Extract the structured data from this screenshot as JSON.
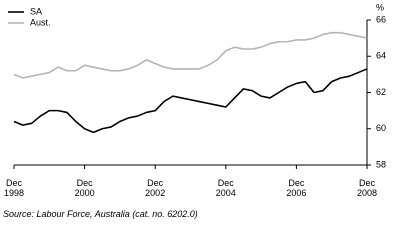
{
  "chart_data": {
    "type": "line",
    "y_label": "%",
    "source": "Source: Labour Force, Australia (cat. no. 6202.0)",
    "x": [
      "1998-12",
      "1999-03",
      "1999-06",
      "1999-09",
      "1999-12",
      "2000-03",
      "2000-06",
      "2000-09",
      "2000-12",
      "2001-03",
      "2001-06",
      "2001-09",
      "2001-12",
      "2002-03",
      "2002-06",
      "2002-09",
      "2002-12",
      "2003-03",
      "2003-06",
      "2003-09",
      "2003-12",
      "2004-03",
      "2004-06",
      "2004-09",
      "2004-12",
      "2005-03",
      "2005-06",
      "2005-09",
      "2005-12",
      "2006-03",
      "2006-06",
      "2006-09",
      "2006-12",
      "2007-03",
      "2007-06",
      "2007-09",
      "2007-12",
      "2008-03",
      "2008-06",
      "2008-09",
      "2008-12"
    ],
    "xlim": [
      "1998-12",
      "2008-12"
    ],
    "xticks": [
      {
        "value": "1998-12",
        "label": "Dec 1998"
      },
      {
        "value": "2000-12",
        "label": "Dec 2000"
      },
      {
        "value": "2002-12",
        "label": "Dec 2002"
      },
      {
        "value": "2004-12",
        "label": "Dec 2004"
      },
      {
        "value": "2006-12",
        "label": "Dec 2006"
      },
      {
        "value": "2008-12",
        "label": "Dec 2008"
      }
    ],
    "ylim": [
      58,
      66
    ],
    "yticks": [
      58,
      60,
      62,
      64,
      66
    ],
    "legend": "top-left",
    "series": [
      {
        "name": "SA",
        "color": "#000000",
        "values": [
          60.4,
          60.2,
          60.3,
          60.7,
          61.0,
          61.0,
          60.9,
          60.4,
          60.0,
          59.8,
          60.0,
          60.1,
          60.4,
          60.6,
          60.7,
          60.9,
          61.0,
          61.5,
          61.8,
          61.7,
          61.6,
          61.5,
          61.4,
          61.3,
          61.2,
          61.7,
          62.2,
          62.1,
          61.8,
          61.7,
          62.0,
          62.3,
          62.5,
          62.6,
          62.0,
          62.1,
          62.6,
          62.8,
          62.9,
          63.1,
          63.3
        ]
      },
      {
        "name": "Aust.",
        "color": "#b4b4b4",
        "values": [
          63.0,
          62.8,
          62.9,
          63.0,
          63.1,
          63.4,
          63.2,
          63.2,
          63.5,
          63.4,
          63.3,
          63.2,
          63.2,
          63.3,
          63.5,
          63.8,
          63.6,
          63.4,
          63.3,
          63.3,
          63.3,
          63.3,
          63.5,
          63.8,
          64.3,
          64.5,
          64.4,
          64.4,
          64.5,
          64.7,
          64.8,
          64.8,
          64.9,
          64.9,
          65.0,
          65.2,
          65.3,
          65.3,
          65.2,
          65.1,
          65.0
        ]
      }
    ]
  }
}
